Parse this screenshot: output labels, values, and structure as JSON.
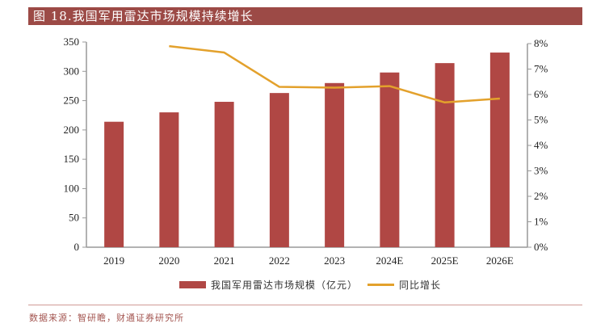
{
  "header": {
    "title": "图 18.我国军用雷达市场规模持续增长"
  },
  "legend": {
    "bar_label": "我国军用雷达市场规模（亿元）",
    "line_label": "同比增长"
  },
  "footer": {
    "source": "数据来源：智研瞻，财通证券研究所"
  },
  "colors": {
    "bar": "#b04744",
    "line": "#e3a12c",
    "title_bg": "#9c4a46",
    "axis": "#999999"
  },
  "chart_data": {
    "type": "bar",
    "title": "我国军用雷达市场规模持续增长",
    "categories": [
      "2019",
      "2020",
      "2021",
      "2022",
      "2023",
      "2024E",
      "2025E",
      "2026E"
    ],
    "series": [
      {
        "name": "我国军用雷达市场规模（亿元）",
        "type": "bar",
        "axis": "left",
        "values": [
          214,
          230,
          248,
          263,
          280,
          298,
          314,
          332
        ]
      },
      {
        "name": "同比增长",
        "type": "line",
        "axis": "right",
        "values": [
          null,
          7.9,
          7.65,
          6.3,
          6.27,
          6.33,
          5.69,
          5.84
        ]
      }
    ],
    "y_left": {
      "min": 0,
      "max": 350,
      "step": 50,
      "ticks": [
        "0",
        "50",
        "100",
        "150",
        "200",
        "250",
        "300",
        "350"
      ]
    },
    "y_right": {
      "min": 0,
      "max": 8,
      "step": 1,
      "ticks": [
        "0%",
        "1%",
        "2%",
        "3%",
        "4%",
        "5%",
        "6%",
        "7%",
        "8%"
      ]
    },
    "xlabel": "",
    "ylabel": "",
    "grid": false,
    "legend_position": "bottom"
  }
}
